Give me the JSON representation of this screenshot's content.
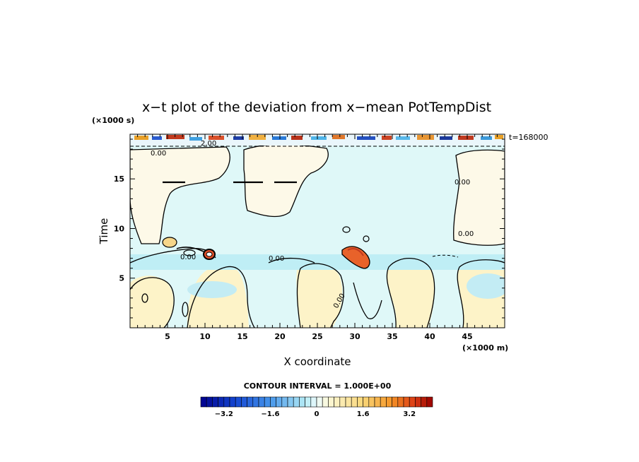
{
  "chart_data": {
    "type": "heatmap",
    "title": "x−t plot of the deviation from x−mean PotTempDist",
    "xlabel": "X coordinate",
    "ylabel": "Time",
    "x_unit": "(×1000 m)",
    "y_unit": "(×1000 s)",
    "xlim": [
      0,
      50
    ],
    "ylim": [
      0,
      19.5
    ],
    "x_ticks": [
      5,
      10,
      15,
      20,
      25,
      30,
      35,
      40,
      45
    ],
    "y_ticks": [
      5,
      10,
      15
    ],
    "time_label": "t=168000",
    "contour_interval_text": "CONTOUR INTERVAL = 1.000E+00",
    "contour_labels": [
      "0.00",
      "0.00",
      "0.00",
      "0.00",
      "0.00",
      "0.00",
      "2.00"
    ],
    "colorbar": {
      "min": -4,
      "max": 4,
      "ticks": [
        "−3.2",
        "−1.6",
        "0",
        "1.6",
        "3.2"
      ],
      "tick_values": [
        -3.2,
        -1.6,
        0,
        1.6,
        3.2
      ]
    }
  }
}
